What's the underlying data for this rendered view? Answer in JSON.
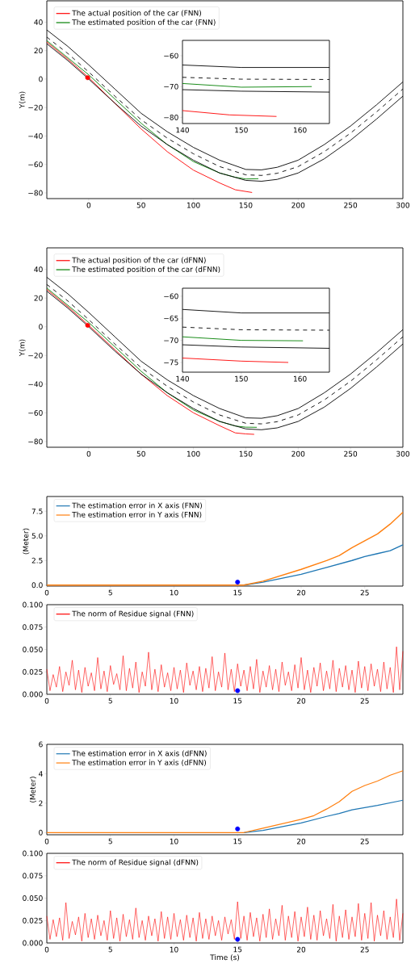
{
  "chart_data": [
    {
      "type": "line",
      "ylabel": "Y(m)",
      "legend": "top left",
      "xlim": [
        -40,
        300
      ],
      "ylim": [
        -84,
        55
      ],
      "xticks": [
        0,
        50,
        100,
        150,
        200,
        250,
        300
      ],
      "yticks": [
        {
          "value": -80,
          "label": "−80"
        },
        {
          "value": -60,
          "label": "−60"
        },
        {
          "value": -40,
          "label": "−40"
        },
        {
          "value": -20,
          "label": "−20"
        },
        0,
        20,
        40
      ],
      "series": [
        {
          "name": "The actual position of the car (FNN)",
          "color": "#ff0000",
          "x": [
            -40,
            -20,
            0,
            25,
            50,
            75,
            100,
            125,
            140,
            156
          ],
          "values": [
            26,
            14,
            1,
            -17,
            -35,
            -51,
            -64,
            -73,
            -77.8,
            -79.7
          ]
        },
        {
          "name": "The estimated position of the car (FNN)",
          "color": "#008000",
          "x": [
            -40,
            -20,
            0,
            25,
            50,
            75,
            100,
            125,
            140,
            150,
            162
          ],
          "values": [
            27,
            15,
            3,
            -14,
            -31,
            -46,
            -58,
            -66,
            -69,
            -70.2,
            -70
          ]
        },
        {
          "color": "#000000",
          "x": [
            -40,
            -20,
            0,
            25,
            50,
            75,
            100,
            125,
            150,
            165,
            180,
            200,
            225,
            250,
            275,
            300
          ],
          "values": [
            34.5,
            23,
            10,
            -7,
            -24,
            -37,
            -48,
            -57,
            -63.5,
            -63.8,
            -62,
            -57,
            -46,
            -33,
            -18,
            -2
          ]
        },
        {
          "color": "#000000",
          "line_style": "dashed",
          "x": [
            -40,
            -20,
            0,
            25,
            50,
            75,
            100,
            125,
            150,
            165,
            180,
            200,
            225,
            250,
            275,
            300
          ],
          "values": [
            29.5,
            18,
            5,
            -12,
            -28.5,
            -41.5,
            -52.5,
            -61.5,
            -67.3,
            -67.7,
            -66.2,
            -61.5,
            -51,
            -38,
            -23,
            -7
          ]
        },
        {
          "color": "#000000",
          "x": [
            -40,
            -20,
            0,
            25,
            50,
            75,
            100,
            125,
            150,
            165,
            180,
            200,
            225,
            250,
            275,
            300
          ],
          "values": [
            24.8,
            13,
            0,
            -17,
            -33,
            -46,
            -57,
            -66,
            -71.2,
            -71.8,
            -70.5,
            -66,
            -56,
            -43,
            -28,
            -12
          ]
        },
        {
          "type": "scatter",
          "marker": "circle",
          "color": "#ff0000",
          "x": [
            -1
          ],
          "values": [
            1
          ]
        }
      ]
    },
    {
      "type": "line",
      "xlim": [
        140,
        165
      ],
      "ylim": [
        -82,
        -55
      ],
      "xticks": [
        140,
        150,
        160
      ],
      "yticks": [
        {
          "value": -80,
          "label": "−80"
        },
        {
          "value": -70,
          "label": "−70"
        },
        {
          "value": -60,
          "label": "−60"
        }
      ],
      "series": [
        {
          "color": "#000000",
          "x": [
            140,
            150,
            165
          ],
          "values": [
            -63,
            -63.8,
            -63.8
          ]
        },
        {
          "color": "#000000",
          "line_style": "dashed",
          "x": [
            140,
            150,
            165
          ],
          "values": [
            -67,
            -67.6,
            -67.7
          ]
        },
        {
          "color": "#000000",
          "x": [
            140,
            150,
            165
          ],
          "values": [
            -71,
            -71.5,
            -71.8
          ]
        },
        {
          "color": "#008000",
          "x": [
            140,
            150,
            162
          ],
          "values": [
            -69,
            -70.2,
            -70
          ]
        },
        {
          "color": "#ff0000",
          "x": [
            140,
            148,
            156
          ],
          "values": [
            -77.8,
            -79.2,
            -79.7
          ]
        }
      ]
    },
    {
      "type": "line",
      "ylabel": "Y(m)",
      "legend": "top left",
      "xlim": [
        -40,
        300
      ],
      "ylim": [
        -84,
        55
      ],
      "xticks": [
        0,
        50,
        100,
        150,
        200,
        250,
        300
      ],
      "yticks": [
        {
          "value": -80,
          "label": "−80"
        },
        {
          "value": -60,
          "label": "−60"
        },
        {
          "value": -40,
          "label": "−40"
        },
        {
          "value": -20,
          "label": "−20"
        },
        0,
        20,
        40
      ],
      "series": [
        {
          "name": "The actual position of the car (dFNN)",
          "color": "#ff0000",
          "x": [
            -40,
            -20,
            0,
            25,
            50,
            75,
            100,
            125,
            140,
            150,
            158
          ],
          "values": [
            26,
            14,
            1,
            -16,
            -33,
            -48,
            -60,
            -69,
            -74,
            -74.7,
            -75
          ]
        },
        {
          "name": "The estimated position of the car (dFNN)",
          "color": "#008000",
          "x": [
            -40,
            -20,
            0,
            25,
            50,
            75,
            100,
            125,
            140,
            150,
            160.5
          ],
          "values": [
            27,
            15,
            3,
            -14,
            -31,
            -46,
            -58,
            -66,
            -69.2,
            -70,
            -70.1
          ]
        },
        {
          "color": "#000000",
          "x": [
            -40,
            -20,
            0,
            25,
            50,
            75,
            100,
            125,
            150,
            165,
            180,
            200,
            225,
            250,
            275,
            300
          ],
          "values": [
            34.5,
            23,
            10,
            -7,
            -24,
            -37,
            -48,
            -57,
            -63.5,
            -63.8,
            -62,
            -57,
            -46,
            -33,
            -18,
            -2
          ]
        },
        {
          "color": "#000000",
          "line_style": "dashed",
          "x": [
            -40,
            -20,
            0,
            25,
            50,
            75,
            100,
            125,
            150,
            165,
            180,
            200,
            225,
            250,
            275,
            300
          ],
          "values": [
            29.5,
            18,
            5,
            -12,
            -28.5,
            -41.5,
            -52.5,
            -61.5,
            -67.3,
            -67.7,
            -66.2,
            -61.5,
            -51,
            -38,
            -23,
            -7
          ]
        },
        {
          "color": "#000000",
          "x": [
            -40,
            -20,
            0,
            25,
            50,
            75,
            100,
            125,
            150,
            165,
            180,
            200,
            225,
            250,
            275,
            300
          ],
          "values": [
            24.8,
            13,
            0,
            -17,
            -33,
            -46,
            -57,
            -66,
            -71.2,
            -71.8,
            -70.5,
            -66,
            -56,
            -43,
            -28,
            -12
          ]
        },
        {
          "type": "scatter",
          "marker": "circle",
          "color": "#ff0000",
          "x": [
            -1
          ],
          "values": [
            1
          ]
        }
      ]
    },
    {
      "type": "line",
      "xlim": [
        140,
        165
      ],
      "ylim": [
        -77.2,
        -58.2
      ],
      "xticks": [
        140,
        150,
        160
      ],
      "yticks": [
        {
          "value": -75,
          "label": "−75"
        },
        {
          "value": -70,
          "label": "−70"
        },
        {
          "value": -65,
          "label": "−65"
        },
        {
          "value": -60,
          "label": "−60"
        }
      ],
      "series": [
        {
          "color": "#000000",
          "x": [
            140,
            150,
            165
          ],
          "values": [
            -63,
            -63.8,
            -63.8
          ]
        },
        {
          "color": "#000000",
          "line_style": "dashed",
          "x": [
            140,
            150,
            165
          ],
          "values": [
            -67,
            -67.6,
            -67.7
          ]
        },
        {
          "color": "#000000",
          "x": [
            140,
            150,
            165
          ],
          "values": [
            -71,
            -71.5,
            -71.8
          ]
        },
        {
          "color": "#008000",
          "x": [
            140,
            150,
            160.5
          ],
          "values": [
            -69.2,
            -70,
            -70.1
          ]
        },
        {
          "color": "#ff0000",
          "x": [
            140,
            150,
            158
          ],
          "values": [
            -74,
            -74.7,
            -75
          ]
        }
      ]
    },
    {
      "type": "line",
      "ylabel": "(Meter)",
      "legend": "top left",
      "xlim": [
        0,
        28
      ],
      "ylim": [
        -0.1,
        9
      ],
      "xticks": [
        0,
        5,
        10,
        15,
        20,
        25
      ],
      "yticks": [
        {
          "value": 0,
          "label": "0.0"
        },
        2.5,
        {
          "value": 5,
          "label": "5.0"
        },
        7.5
      ],
      "series": [
        {
          "name": "The estimation error in X axis (FNN)",
          "color": "#1f77b4",
          "x": [
            15.5,
            17,
            20,
            22,
            24,
            25,
            26,
            27,
            28
          ],
          "values": [
            0,
            0.3,
            1.1,
            1.8,
            2.5,
            2.9,
            3.2,
            3.5,
            4.1
          ]
        },
        {
          "name": "The estimation error in Y axis (FNN)",
          "color": "#ff7f0e",
          "x": [
            0,
            15.5,
            17,
            20,
            22,
            23,
            24,
            25,
            26,
            27,
            28
          ],
          "values": [
            0,
            0,
            0.4,
            1.6,
            2.5,
            3.0,
            3.8,
            4.5,
            5.2,
            6.2,
            7.4
          ]
        },
        {
          "type": "scatter",
          "marker": "circle",
          "color": "#0000ff",
          "x": [
            15
          ],
          "values": [
            0.3
          ]
        }
      ]
    },
    {
      "type": "line",
      "legend": "top left",
      "xlim": [
        0,
        28
      ],
      "ylim": [
        0,
        0.1
      ],
      "xticks": [
        0,
        5,
        10,
        15,
        20,
        25
      ],
      "yticks": [
        {
          "value": 0,
          "label": "0.000"
        },
        {
          "value": 0.025,
          "label": "0.025"
        },
        {
          "value": 0.05,
          "label": "0.050"
        },
        {
          "value": 0.075,
          "label": "0.075"
        },
        {
          "value": 0.1,
          "label": "0.100"
        }
      ],
      "series": [
        {
          "name": "The norm of Residue signal (FNN)",
          "color": "#ff0000",
          "x": [
            0,
            0.25,
            0.5,
            0.75,
            1,
            1.25,
            1.5,
            1.75,
            2,
            2.25,
            2.5,
            2.75,
            3,
            3.25,
            3.5,
            3.75,
            4,
            4.25,
            4.5,
            4.75,
            5,
            5.25,
            5.5,
            5.75,
            6,
            6.25,
            6.5,
            6.75,
            7,
            7.25,
            7.5,
            7.75,
            8,
            8.25,
            8.5,
            8.75,
            9,
            9.25,
            9.5,
            9.75,
            10,
            10.25,
            10.5,
            10.75,
            11,
            11.25,
            11.5,
            11.75,
            12,
            12.25,
            12.5,
            12.75,
            13,
            13.25,
            13.5,
            13.75,
            14,
            14.25,
            14.5,
            14.75,
            15,
            15.25,
            15.5,
            15.75,
            16,
            16.25,
            16.5,
            16.75,
            17,
            17.25,
            17.5,
            17.75,
            18,
            18.25,
            18.5,
            18.75,
            19,
            19.25,
            19.5,
            19.75,
            20,
            20.25,
            20.5,
            20.75,
            21,
            21.25,
            21.5,
            21.75,
            22,
            22.25,
            22.5,
            22.75,
            23,
            23.25,
            23.5,
            23.75,
            24,
            24.25,
            24.5,
            24.75,
            25,
            25.25,
            25.5,
            25.75,
            26,
            26.25,
            26.5,
            26.75,
            27,
            27.25,
            27.5,
            27.75,
            28
          ],
          "values": [
            0.028,
            0.004,
            0.022,
            0.008,
            0.031,
            0.003,
            0.025,
            0.01,
            0.038,
            0.005,
            0.027,
            0.002,
            0.03,
            0.009,
            0.024,
            0.004,
            0.041,
            0.006,
            0.026,
            0.003,
            0.032,
            0.011,
            0.023,
            0.005,
            0.043,
            0.004,
            0.029,
            0.007,
            0.036,
            0.002,
            0.025,
            0.009,
            0.047,
            0.005,
            0.028,
            0.003,
            0.033,
            0.008,
            0.024,
            0.004,
            0.03,
            0.006,
            0.027,
            0.002,
            0.035,
            0.01,
            0.026,
            0.005,
            0.031,
            0.003,
            0.029,
            0.007,
            0.042,
            0.004,
            0.025,
            0.008,
            0.046,
            0.005,
            0.028,
            0.003,
            0.034,
            0.009,
            0.027,
            0.004,
            0.031,
            0.006,
            0.039,
            0.002,
            0.026,
            0.008,
            0.032,
            0.005,
            0.028,
            0.003,
            0.036,
            0.01,
            0.025,
            0.004,
            0.033,
            0.007,
            0.041,
            0.005,
            0.027,
            0.002,
            0.03,
            0.009,
            0.035,
            0.004,
            0.026,
            0.006,
            0.038,
            0.003,
            0.029,
            0.008,
            0.032,
            0.005,
            0.027,
            0.002,
            0.037,
            0.007,
            0.031,
            0.004,
            0.034,
            0.009,
            0.028,
            0.003,
            0.036,
            0.006,
            0.03,
            0.002,
            0.053,
            0.005,
            0.048
          ]
        },
        {
          "type": "scatter",
          "marker": "circle",
          "color": "#0000ff",
          "x": [
            15
          ],
          "values": [
            0.004
          ]
        }
      ]
    },
    {
      "type": "line",
      "ylabel": "(Meter)",
      "legend": "top left",
      "xlim": [
        0,
        28
      ],
      "ylim": [
        -0.15,
        6
      ],
      "xticks": [
        0,
        5,
        10,
        15,
        20,
        25
      ],
      "yticks": [
        0,
        2,
        4,
        6
      ],
      "series": [
        {
          "name": "The estimation error in X axis (dFNN)",
          "color": "#1f77b4",
          "x": [
            15.5,
            17,
            20,
            22,
            23,
            24,
            25,
            26,
            28
          ],
          "values": [
            0,
            0.15,
            0.65,
            1.1,
            1.3,
            1.55,
            1.7,
            1.85,
            2.2
          ]
        },
        {
          "name": "The estimation error in Y axis (dFNN)",
          "color": "#ff7f0e",
          "x": [
            0,
            15.5,
            17,
            20,
            21,
            22,
            23,
            24,
            25,
            26,
            27,
            28
          ],
          "values": [
            0,
            0,
            0.3,
            0.9,
            1.15,
            1.6,
            2.1,
            2.8,
            3.2,
            3.5,
            3.9,
            4.2
          ]
        },
        {
          "type": "scatter",
          "marker": "circle",
          "color": "#0000ff",
          "x": [
            15
          ],
          "values": [
            0.25
          ]
        }
      ]
    },
    {
      "type": "line",
      "xlabel": "Time (s)",
      "legend": "top left",
      "xlim": [
        0,
        28
      ],
      "ylim": [
        0,
        0.1
      ],
      "xticks": [
        0,
        5,
        10,
        15,
        20,
        25
      ],
      "yticks": [
        {
          "value": 0,
          "label": "0.000"
        },
        {
          "value": 0.025,
          "label": "0.025"
        },
        {
          "value": 0.05,
          "label": "0.050"
        },
        {
          "value": 0.075,
          "label": "0.075"
        },
        {
          "value": 0.1,
          "label": "0.100"
        }
      ],
      "series": [
        {
          "name": "The norm of Residue signal (dFNN)",
          "color": "#ff0000",
          "x": [
            0,
            0.25,
            0.5,
            0.75,
            1,
            1.25,
            1.5,
            1.75,
            2,
            2.25,
            2.5,
            2.75,
            3,
            3.25,
            3.5,
            3.75,
            4,
            4.25,
            4.5,
            4.75,
            5,
            5.25,
            5.5,
            5.75,
            6,
            6.25,
            6.5,
            6.75,
            7,
            7.25,
            7.5,
            7.75,
            8,
            8.25,
            8.5,
            8.75,
            9,
            9.25,
            9.5,
            9.75,
            10,
            10.25,
            10.5,
            10.75,
            11,
            11.25,
            11.5,
            11.75,
            12,
            12.25,
            12.5,
            12.75,
            13,
            13.25,
            13.5,
            13.75,
            14,
            14.25,
            14.5,
            14.75,
            15,
            15.25,
            15.5,
            15.75,
            16,
            16.25,
            16.5,
            16.75,
            17,
            17.25,
            17.5,
            17.75,
            18,
            18.25,
            18.5,
            18.75,
            19,
            19.25,
            19.5,
            19.75,
            20,
            20.25,
            20.5,
            20.75,
            21,
            21.25,
            21.5,
            21.75,
            22,
            22.25,
            22.5,
            22.75,
            23,
            23.25,
            23.5,
            23.75,
            24,
            24.25,
            24.5,
            24.75,
            25,
            25.25,
            25.5,
            25.75,
            26,
            26.25,
            26.5,
            26.75,
            27,
            27.25,
            27.5,
            27.75,
            28
          ],
          "values": [
            0.03,
            0.004,
            0.026,
            0.007,
            0.028,
            0.003,
            0.045,
            0.005,
            0.024,
            0.009,
            0.029,
            0.002,
            0.033,
            0.006,
            0.027,
            0.004,
            0.031,
            0.008,
            0.025,
            0.003,
            0.036,
            0.005,
            0.028,
            0.002,
            0.032,
            0.007,
            0.026,
            0.004,
            0.039,
            0.006,
            0.025,
            0.003,
            0.03,
            0.008,
            0.027,
            0.002,
            0.035,
            0.005,
            0.029,
            0.004,
            0.033,
            0.007,
            0.026,
            0.003,
            0.031,
            0.006,
            0.028,
            0.002,
            0.034,
            0.005,
            0.027,
            0.004,
            0.03,
            0.008,
            0.025,
            0.003,
            0.029,
            0.01,
            0.026,
            0.004,
            0.046,
            0.005,
            0.03,
            0.003,
            0.034,
            0.007,
            0.028,
            0.002,
            0.032,
            0.006,
            0.038,
            0.004,
            0.027,
            0.008,
            0.042,
            0.003,
            0.03,
            0.006,
            0.035,
            0.002,
            0.029,
            0.007,
            0.04,
            0.004,
            0.031,
            0.003,
            0.036,
            0.008,
            0.027,
            0.005,
            0.043,
            0.002,
            0.03,
            0.006,
            0.037,
            0.004,
            0.029,
            0.007,
            0.044,
            0.003,
            0.033,
            0.005,
            0.045,
            0.002,
            0.031,
            0.008,
            0.036,
            0.004,
            0.029,
            0.006,
            0.049,
            0.003,
            0.033
          ]
        },
        {
          "type": "scatter",
          "marker": "circle",
          "color": "#0000ff",
          "x": [
            15
          ],
          "values": [
            0.004
          ]
        }
      ]
    }
  ]
}
